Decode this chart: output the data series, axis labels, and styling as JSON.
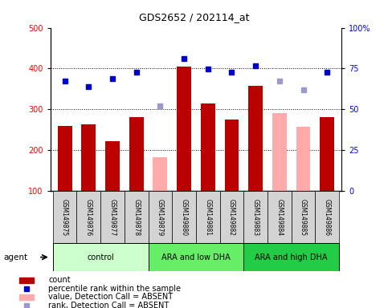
{
  "title": "GDS2652 / 202114_at",
  "samples": [
    "GSM149875",
    "GSM149876",
    "GSM149877",
    "GSM149878",
    "GSM149879",
    "GSM149880",
    "GSM149881",
    "GSM149882",
    "GSM149883",
    "GSM149884",
    "GSM149885",
    "GSM149886"
  ],
  "bar_values": [
    260,
    263,
    222,
    281,
    183,
    404,
    315,
    276,
    358,
    291,
    258,
    280
  ],
  "bar_absent": [
    false,
    false,
    false,
    false,
    true,
    false,
    false,
    false,
    false,
    true,
    true,
    false
  ],
  "percentile_values": [
    370,
    355,
    376,
    391,
    null,
    424,
    399,
    391,
    407,
    null,
    null,
    391
  ],
  "rank_absent_values": [
    null,
    null,
    null,
    null,
    309,
    null,
    null,
    null,
    null,
    369,
    347,
    null
  ],
  "ylim_left": [
    100,
    500
  ],
  "ylim_right": [
    0,
    100
  ],
  "yticks_left": [
    100,
    200,
    300,
    400,
    500
  ],
  "ytick_labels_left": [
    "100",
    "200",
    "300",
    "400",
    "500"
  ],
  "yticks_right": [
    0,
    25,
    50,
    75,
    100
  ],
  "ytick_labels_right": [
    "0",
    "25",
    "50",
    "75",
    "100%"
  ],
  "groups": [
    {
      "label": "control",
      "start": 0,
      "end": 3,
      "color": "#ccffcc"
    },
    {
      "label": "ARA and low DHA",
      "start": 4,
      "end": 7,
      "color": "#66ee66"
    },
    {
      "label": "ARA and high DHA",
      "start": 8,
      "end": 11,
      "color": "#22cc44"
    }
  ],
  "bar_color_present": "#bb0000",
  "bar_color_absent": "#ffaaaa",
  "dot_color_present": "#0000cc",
  "dot_color_absent": "#9999cc",
  "agent_label": "agent",
  "legend_items": [
    {
      "label": "count",
      "color": "#bb0000",
      "type": "bar"
    },
    {
      "label": "percentile rank within the sample",
      "color": "#0000cc",
      "type": "dot"
    },
    {
      "label": "value, Detection Call = ABSENT",
      "color": "#ffaaaa",
      "type": "bar"
    },
    {
      "label": "rank, Detection Call = ABSENT",
      "color": "#9999cc",
      "type": "dot"
    }
  ]
}
